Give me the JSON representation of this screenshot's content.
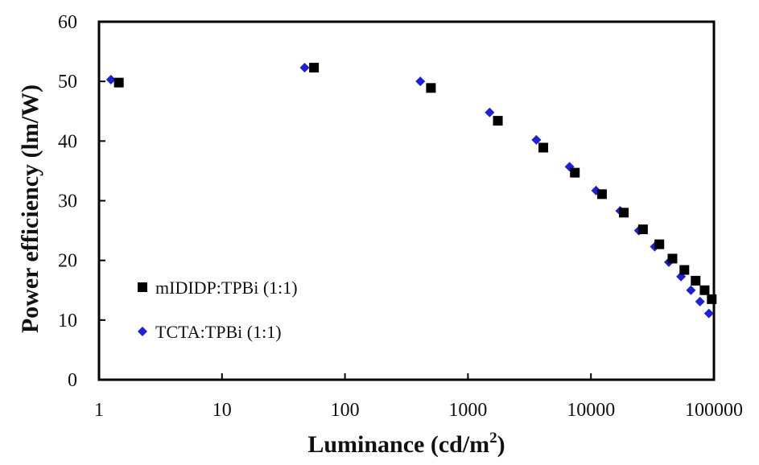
{
  "chart_data": {
    "type": "scatter",
    "xlabel": "Luminance (cd/m",
    "xlabel_sup": "2",
    "xlabel_close": ")",
    "ylabel": "Power efficiency (lm/W)",
    "x_scale": "log",
    "xlim": [
      1,
      100000
    ],
    "ylim": [
      0,
      60
    ],
    "x_ticks": [
      1,
      10,
      100,
      1000,
      10000,
      100000
    ],
    "x_tick_labels": [
      "1",
      "10",
      "100",
      "1000",
      "10000",
      "100000"
    ],
    "y_ticks": [
      0,
      10,
      20,
      30,
      40,
      50,
      60
    ],
    "y_tick_labels": [
      "0",
      "10",
      "20",
      "30",
      "40",
      "50",
      "60"
    ],
    "grid": false,
    "legend_position": "left",
    "series": [
      {
        "name": "mIDIDP:TPBi (1:1)",
        "marker": "square",
        "color": "#000000",
        "x": [
          1.45,
          56,
          500,
          1750,
          4100,
          7400,
          12300,
          18500,
          26500,
          36000,
          46000,
          57500,
          71000,
          84000,
          96000
        ],
        "y": [
          49.8,
          52.3,
          48.9,
          43.4,
          38.9,
          34.7,
          31.1,
          28.0,
          25.2,
          22.7,
          20.3,
          18.4,
          16.6,
          15.0,
          13.5
        ]
      },
      {
        "name": "TCTA:TPBi (1:1)",
        "marker": "diamond",
        "color": "#1f1fd6",
        "x": [
          1.25,
          47,
          410,
          1500,
          3600,
          6700,
          11000,
          17300,
          24500,
          33000,
          43000,
          54000,
          65000,
          77000,
          91000
        ],
        "y": [
          50.3,
          52.3,
          50.0,
          44.8,
          40.2,
          35.7,
          31.7,
          28.3,
          25.0,
          22.3,
          19.7,
          17.3,
          15.0,
          13.1,
          11.1
        ]
      }
    ]
  }
}
